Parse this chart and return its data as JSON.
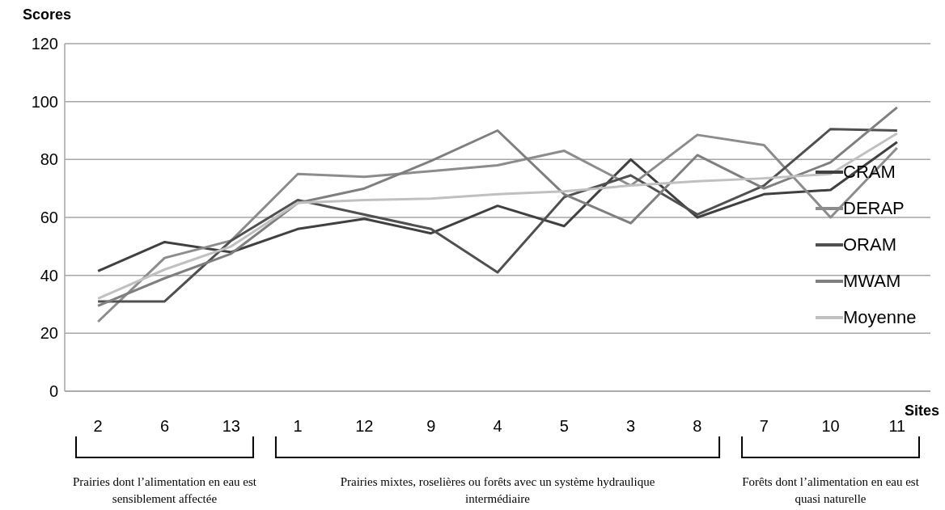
{
  "chart_data": {
    "type": "line",
    "ylabel": "Scores",
    "xlabel": "Sites",
    "categories": [
      "2",
      "6",
      "13",
      "1",
      "12",
      "9",
      "4",
      "5",
      "3",
      "8",
      "7",
      "10",
      "11"
    ],
    "series": [
      {
        "name": "CRAM",
        "color": "#404040",
        "values": [
          41.5,
          51.5,
          48,
          56,
          59.5,
          54.5,
          64,
          57,
          80,
          60,
          68,
          69.5,
          86
        ]
      },
      {
        "name": "DERAP",
        "color": "#8c8c8c",
        "values": [
          24,
          46,
          52,
          75,
          74,
          76,
          78,
          83,
          71,
          88.5,
          85,
          60,
          84
        ]
      },
      {
        "name": "ORAM",
        "color": "#505050",
        "values": [
          31,
          31,
          52,
          66,
          61,
          56,
          41,
          67,
          74.5,
          61,
          71,
          90.5,
          90
        ]
      },
      {
        "name": "MWAM",
        "color": "#7f7f7f",
        "values": [
          29.5,
          39,
          47.5,
          65,
          70,
          79.5,
          90,
          68,
          58,
          81.5,
          70,
          79,
          98
        ]
      },
      {
        "name": "Moyenne",
        "color": "#c0c0c0",
        "values": [
          32,
          42,
          50,
          65,
          66,
          66.5,
          68,
          69,
          71,
          72.5,
          73.5,
          75,
          89
        ]
      }
    ],
    "ylim": [
      0,
      120
    ],
    "yticks": [
      0,
      20,
      40,
      60,
      80,
      100,
      120
    ],
    "grid": "y",
    "legend": "right",
    "marker": "none",
    "line_style": "solid",
    "annotations": [
      "Prairies dont l’alimentation en eau est sensiblement affectée",
      "Prairies mixtes, roselières ou forêts avec un système hydraulique intermédiaire",
      "Forêts dont l’alimentation en eau est quasi naturelle"
    ]
  }
}
